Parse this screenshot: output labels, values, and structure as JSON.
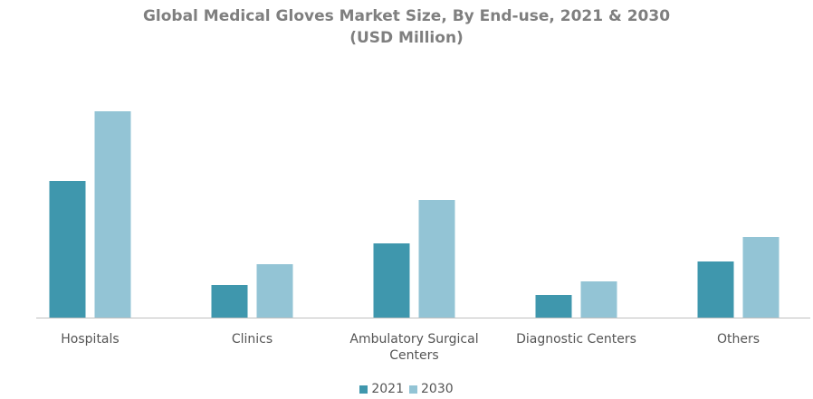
{
  "chart_data": {
    "type": "bar",
    "title": "Global Medical Gloves Market Size, By End-use, 2021 & 2030",
    "subtitle": "(USD Million)",
    "categories": [
      "Hospitals",
      "Clinics",
      "Ambulatory Surgical Centers",
      "Diagnostic Centers",
      "Others"
    ],
    "series": [
      {
        "name": "2021",
        "color": "#3f97ad",
        "values": [
          151,
          36,
          82,
          25,
          62
        ]
      },
      {
        "name": "2030",
        "color": "#93c4d5",
        "values": [
          228,
          59,
          130,
          40,
          89
        ]
      }
    ],
    "legend": "bottom"
  }
}
